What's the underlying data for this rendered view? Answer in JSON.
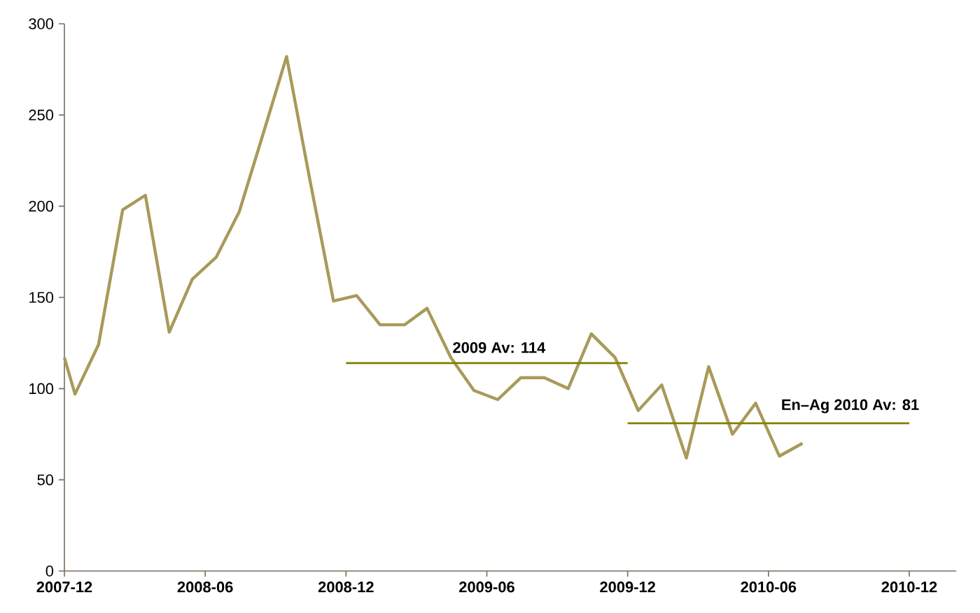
{
  "chart_data": {
    "type": "line",
    "series": [
      {
        "color": "#a89a5a",
        "x": [
          "2007-12-01",
          "2007-12-15",
          "2008-01-15",
          "2008-02-15",
          "2008-03-15",
          "2008-04-15",
          "2008-05-15",
          "2008-06-15",
          "2008-07-15",
          "2008-08-15",
          "2008-09-15",
          "2008-10-15",
          "2008-11-15",
          "2008-12-15",
          "2009-01-15",
          "2009-02-15",
          "2009-03-15",
          "2009-04-15",
          "2009-05-15",
          "2009-06-15",
          "2009-07-15",
          "2009-08-15",
          "2009-09-15",
          "2009-10-15",
          "2009-11-15",
          "2009-12-15",
          "2010-01-15",
          "2010-02-15",
          "2010-03-15",
          "2010-04-15",
          "2010-05-15",
          "2010-06-15",
          "2010-07-15"
        ],
        "values": [
          117,
          97,
          124,
          198,
          206,
          131,
          160,
          172,
          197,
          239,
          282,
          215,
          148,
          151,
          135,
          135,
          144,
          117,
          99,
          94,
          106,
          106,
          100,
          130,
          117,
          88,
          102,
          62,
          112,
          75,
          92,
          63,
          70
        ]
      },
      {
        "color": "#808000",
        "x": [
          "2008-12-01",
          "2009-12-01"
        ],
        "values": [
          114,
          114
        ]
      },
      {
        "color": "#808000",
        "x": [
          "2009-12-01",
          "2010-12-01"
        ],
        "values": [
          81,
          81
        ]
      }
    ],
    "annotations": [
      {
        "text": "2009 Av: 114",
        "x": "2009-04-15",
        "y": 114
      },
      {
        "text": "En–Ag 2010 Av: 81",
        "x": "2010-06-15",
        "y": 81
      }
    ],
    "xlim": [
      "2007-12-01",
      "2011-02-01"
    ],
    "xticks": [
      "2007-12",
      "2008-06",
      "2008-12",
      "2009-06",
      "2009-12",
      "2010-06",
      "2010-12"
    ],
    "ylim": [
      0,
      300
    ],
    "yticks": [
      0,
      50,
      100,
      150,
      200,
      250,
      300
    ],
    "grid": false,
    "marker": "none",
    "line_style": "solid"
  }
}
